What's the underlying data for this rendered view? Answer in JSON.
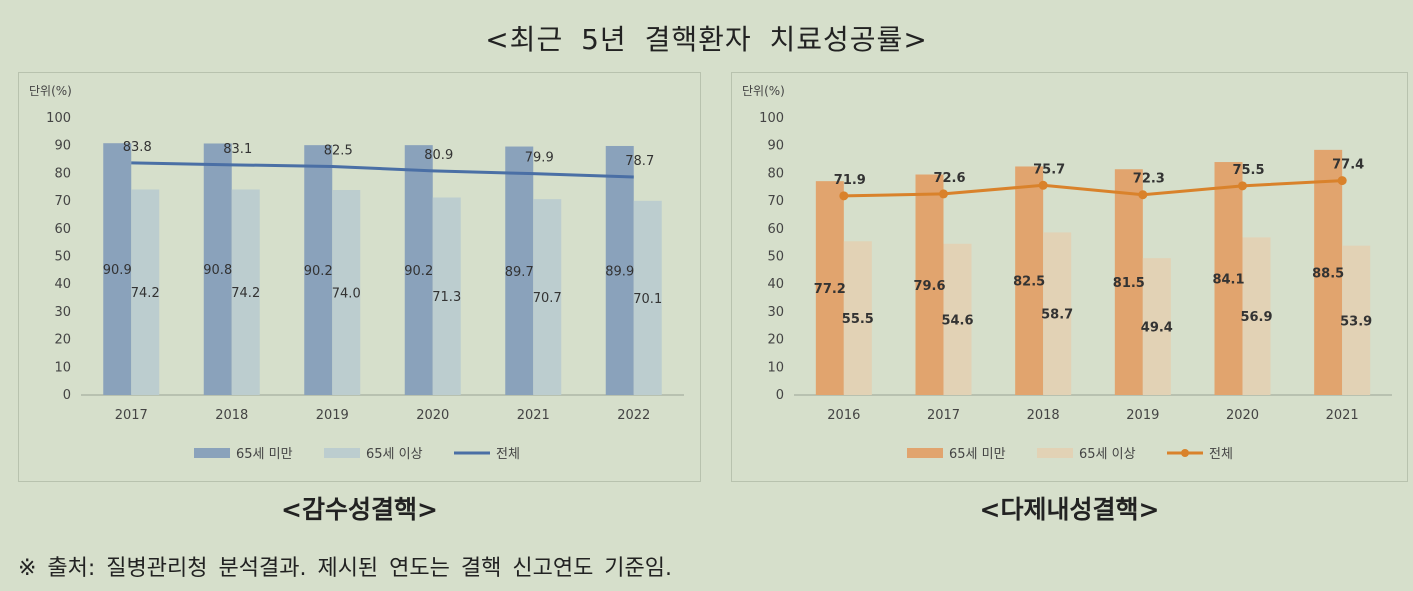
{
  "title": "<최근 5년 결핵환자 치료성공률>",
  "source_note": "※ 출처: 질병관리청 분석결과. 제시된 연도는 결핵 신고연도 기준임.",
  "colors": {
    "left_under65": "#8aa2bb",
    "left_over65": "#bccdcf",
    "left_total": "#4a6fa5",
    "right_under65": "#e1a46e",
    "right_over65": "#e2d2b5",
    "right_total": "#d9822b"
  },
  "chart_data": [
    {
      "type": "bar",
      "caption": "<감수성결핵>",
      "unit_label": "단위(%)",
      "categories": [
        "2017",
        "2018",
        "2019",
        "2020",
        "2021",
        "2022"
      ],
      "ylim": [
        0,
        100
      ],
      "yticks": [
        "0",
        "10",
        "20",
        "30",
        "40",
        "50",
        "60",
        "70",
        "80",
        "90",
        "100"
      ],
      "series": [
        {
          "name": "65세 미만",
          "kind": "bar",
          "values": [
            90.9,
            90.8,
            90.2,
            90.2,
            89.7,
            89.9
          ],
          "labels": [
            "90.9",
            "90.8",
            "90.2",
            "90.2",
            "89.7",
            "89.9"
          ]
        },
        {
          "name": "65세 이상",
          "kind": "bar",
          "values": [
            74.2,
            74.2,
            74.0,
            71.3,
            70.7,
            70.1
          ],
          "labels": [
            "74.2",
            "74.2",
            "74.0",
            "71.3",
            "70.7",
            "70.1"
          ]
        },
        {
          "name": "전체",
          "kind": "line",
          "values": [
            83.8,
            83.1,
            82.5,
            80.9,
            79.9,
            78.7
          ],
          "labels": [
            "83.8",
            "83.1",
            "82.5",
            "80.9",
            "79.9",
            "78.7"
          ]
        }
      ],
      "legend_position": "bottom"
    },
    {
      "type": "bar",
      "caption": "<다제내성결핵>",
      "unit_label": "단위(%)",
      "categories": [
        "2016",
        "2017",
        "2018",
        "2019",
        "2020",
        "2021"
      ],
      "ylim": [
        0,
        100
      ],
      "yticks": [
        "0",
        "10",
        "20",
        "30",
        "40",
        "50",
        "60",
        "70",
        "80",
        "90",
        "100"
      ],
      "series": [
        {
          "name": "65세 미만",
          "kind": "bar",
          "values": [
            77.2,
            79.6,
            82.5,
            81.5,
            84.1,
            88.5
          ],
          "labels": [
            "77.2",
            "79.6",
            "82.5",
            "81.5",
            "84.1",
            "88.5"
          ]
        },
        {
          "name": "65세 이상",
          "kind": "bar",
          "values": [
            55.5,
            54.6,
            58.7,
            49.4,
            56.9,
            53.9
          ],
          "labels": [
            "55.5",
            "54.6",
            "58.7",
            "49.4",
            "56.9",
            "53.9"
          ]
        },
        {
          "name": "전체",
          "kind": "line",
          "values": [
            71.9,
            72.6,
            75.7,
            72.3,
            75.5,
            77.4
          ],
          "labels": [
            "71.9",
            "72.6",
            "75.7",
            "72.3",
            "75.5",
            "77.4"
          ]
        }
      ],
      "legend_position": "bottom"
    }
  ]
}
